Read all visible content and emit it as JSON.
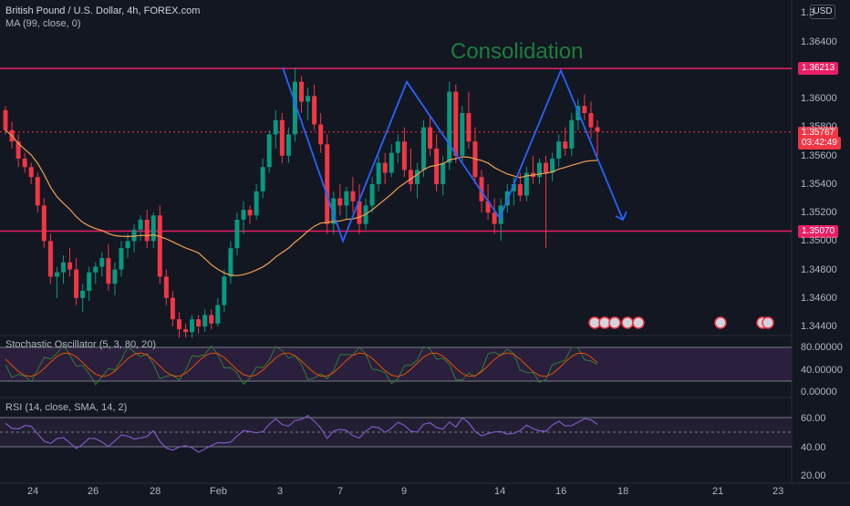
{
  "header": {
    "title": "British Pound / U.S. Dollar, 4h, FOREX.com",
    "ma_legend": "MA (99, close, 0)",
    "currency": "USD"
  },
  "annotation": {
    "consolidation": "Consolidation"
  },
  "badges": {
    "resistance": "1.36213",
    "current_price": "1.35767",
    "countdown": "03:42:49",
    "support": "1.35070"
  },
  "price_axis": {
    "ticks": [
      "1.36400",
      "1.36000",
      "1.35800",
      "1.35600",
      "1.35400",
      "1.35200",
      "1.35000",
      "1.34800",
      "1.34600",
      "1.34400"
    ],
    "partial_top": "1.3"
  },
  "stoch": {
    "legend": "Stochastic Oscillator (5, 3, 80, 20)",
    "ticks": [
      "80.00000",
      "40.00000",
      "0.00000"
    ]
  },
  "rsi": {
    "legend": "RSI (14, close, SMA, 14, 2)",
    "ticks": [
      "60.00",
      "40.00",
      "20.00"
    ]
  },
  "x_axis": {
    "labels": [
      "24",
      "26",
      "28",
      "Feb",
      "3",
      "7",
      "9",
      "14",
      "16",
      "18",
      "21",
      "23"
    ]
  },
  "chart_data": {
    "type": "candlestick",
    "symbol": "GBPUSD",
    "interval": "4h",
    "ylim": [
      1.3432,
      1.3665
    ],
    "resistance_level": 1.36213,
    "support_level": 1.3507,
    "current_price": 1.35767,
    "ma_period": 99,
    "pattern_points": [
      [
        "3",
        1.3622
      ],
      [
        "7",
        1.35
      ],
      [
        "9",
        1.3612
      ],
      [
        "14",
        1.3516
      ],
      [
        "16",
        1.362
      ],
      [
        "18",
        1.3515
      ]
    ],
    "x_labels": [
      "24",
      "26",
      "28",
      "Feb",
      "3",
      "7",
      "9",
      "14",
      "16",
      "18",
      "21",
      "23"
    ],
    "ohlc": [
      [
        1.3592,
        1.3595,
        1.3575,
        1.3578
      ],
      [
        1.3578,
        1.3584,
        1.3565,
        1.357
      ],
      [
        1.357,
        1.3575,
        1.3552,
        1.3558
      ],
      [
        1.3558,
        1.3562,
        1.3548,
        1.3552
      ],
      [
        1.3552,
        1.3555,
        1.354,
        1.3545
      ],
      [
        1.3545,
        1.3548,
        1.352,
        1.3525
      ],
      [
        1.3525,
        1.353,
        1.3495,
        1.35
      ],
      [
        1.35,
        1.3505,
        1.347,
        1.3475
      ],
      [
        1.3475,
        1.3482,
        1.346,
        1.3478
      ],
      [
        1.3478,
        1.349,
        1.347,
        1.3485
      ],
      [
        1.3485,
        1.3495,
        1.3475,
        1.348
      ],
      [
        1.348,
        1.3488,
        1.3455,
        1.346
      ],
      [
        1.346,
        1.347,
        1.345,
        1.3465
      ],
      [
        1.3465,
        1.3482,
        1.3458,
        1.3478
      ],
      [
        1.3478,
        1.3485,
        1.347,
        1.3482
      ],
      [
        1.3482,
        1.3492,
        1.3475,
        1.3488
      ],
      [
        1.3488,
        1.3498,
        1.3465,
        1.347
      ],
      [
        1.347,
        1.3485,
        1.3462,
        1.348
      ],
      [
        1.348,
        1.35,
        1.3475,
        1.3495
      ],
      [
        1.3495,
        1.3505,
        1.3488,
        1.35
      ],
      [
        1.35,
        1.3512,
        1.3492,
        1.3508
      ],
      [
        1.3508,
        1.3518,
        1.35,
        1.3515
      ],
      [
        1.3515,
        1.3522,
        1.3495,
        1.35
      ],
      [
        1.35,
        1.352,
        1.3495,
        1.3518
      ],
      [
        1.3518,
        1.3525,
        1.347,
        1.3475
      ],
      [
        1.3475,
        1.348,
        1.3455,
        1.346
      ],
      [
        1.346,
        1.3465,
        1.344,
        1.3445
      ],
      [
        1.3445,
        1.345,
        1.3432,
        1.3438
      ],
      [
        1.3438,
        1.3442,
        1.3432,
        1.3436
      ],
      [
        1.3436,
        1.3448,
        1.3432,
        1.3445
      ],
      [
        1.3445,
        1.3448,
        1.3435,
        1.344
      ],
      [
        1.344,
        1.3452,
        1.3436,
        1.3448
      ],
      [
        1.3448,
        1.3452,
        1.3438,
        1.3442
      ],
      [
        1.3442,
        1.346,
        1.344,
        1.3455
      ],
      [
        1.3455,
        1.348,
        1.345,
        1.3475
      ],
      [
        1.3475,
        1.35,
        1.347,
        1.3495
      ],
      [
        1.3495,
        1.352,
        1.349,
        1.3515
      ],
      [
        1.3515,
        1.3528,
        1.3505,
        1.3522
      ],
      [
        1.3522,
        1.3525,
        1.3512,
        1.3518
      ],
      [
        1.3518,
        1.354,
        1.3515,
        1.3535
      ],
      [
        1.3535,
        1.3558,
        1.353,
        1.3552
      ],
      [
        1.3552,
        1.3578,
        1.3548,
        1.3575
      ],
      [
        1.3575,
        1.3592,
        1.3565,
        1.3585
      ],
      [
        1.3585,
        1.359,
        1.3555,
        1.356
      ],
      [
        1.356,
        1.358,
        1.3555,
        1.3575
      ],
      [
        1.3575,
        1.3622,
        1.357,
        1.3612
      ],
      [
        1.3612,
        1.3616,
        1.359,
        1.3598
      ],
      [
        1.3598,
        1.3608,
        1.3585,
        1.3602
      ],
      [
        1.3602,
        1.361,
        1.3578,
        1.3582
      ],
      [
        1.3582,
        1.359,
        1.3562,
        1.3568
      ],
      [
        1.3568,
        1.3575,
        1.3505,
        1.3512
      ],
      [
        1.3512,
        1.3535,
        1.3505,
        1.353
      ],
      [
        1.353,
        1.354,
        1.3518,
        1.3525
      ],
      [
        1.3525,
        1.3538,
        1.3515,
        1.3535
      ],
      [
        1.3535,
        1.3545,
        1.352,
        1.3528
      ],
      [
        1.3528,
        1.354,
        1.3505,
        1.3512
      ],
      [
        1.3512,
        1.353,
        1.3508,
        1.3525
      ],
      [
        1.3525,
        1.3545,
        1.352,
        1.354
      ],
      [
        1.354,
        1.356,
        1.3535,
        1.3555
      ],
      [
        1.3555,
        1.3562,
        1.354,
        1.3548
      ],
      [
        1.3548,
        1.3568,
        1.3545,
        1.3562
      ],
      [
        1.3562,
        1.3575,
        1.3555,
        1.357
      ],
      [
        1.357,
        1.358,
        1.3545,
        1.355
      ],
      [
        1.355,
        1.3565,
        1.3535,
        1.354
      ],
      [
        1.354,
        1.3555,
        1.353,
        1.355
      ],
      [
        1.355,
        1.3585,
        1.3545,
        1.358
      ],
      [
        1.358,
        1.3588,
        1.356,
        1.3565
      ],
      [
        1.3565,
        1.3575,
        1.3535,
        1.354
      ],
      [
        1.354,
        1.356,
        1.3532,
        1.3555
      ],
      [
        1.3555,
        1.3612,
        1.355,
        1.3605
      ],
      [
        1.3605,
        1.361,
        1.3555,
        1.356
      ],
      [
        1.356,
        1.3595,
        1.3555,
        1.359
      ],
      [
        1.359,
        1.3605,
        1.3565,
        1.357
      ],
      [
        1.357,
        1.358,
        1.354,
        1.3545
      ],
      [
        1.3545,
        1.355,
        1.352,
        1.3528
      ],
      [
        1.3528,
        1.354,
        1.3515,
        1.352
      ],
      [
        1.352,
        1.353,
        1.3505,
        1.3512
      ],
      [
        1.3512,
        1.353,
        1.35,
        1.3525
      ],
      [
        1.3525,
        1.354,
        1.352,
        1.3535
      ],
      [
        1.3535,
        1.3545,
        1.3525,
        1.354
      ],
      [
        1.354,
        1.3548,
        1.3528,
        1.3532
      ],
      [
        1.3532,
        1.3552,
        1.3528,
        1.3548
      ],
      [
        1.3548,
        1.356,
        1.354,
        1.3545
      ],
      [
        1.3545,
        1.3558,
        1.354,
        1.3555
      ],
      [
        1.3555,
        1.356,
        1.3495,
        1.3548
      ],
      [
        1.3548,
        1.3562,
        1.3542,
        1.3558
      ],
      [
        1.3558,
        1.3575,
        1.3552,
        1.357
      ],
      [
        1.357,
        1.358,
        1.356,
        1.3565
      ],
      [
        1.3565,
        1.359,
        1.356,
        1.3585
      ],
      [
        1.3585,
        1.36,
        1.3578,
        1.3595
      ],
      [
        1.3595,
        1.3603,
        1.3585,
        1.359
      ],
      [
        1.359,
        1.3598,
        1.3572,
        1.358
      ],
      [
        1.358,
        1.3585,
        1.356,
        1.3577
      ]
    ]
  }
}
